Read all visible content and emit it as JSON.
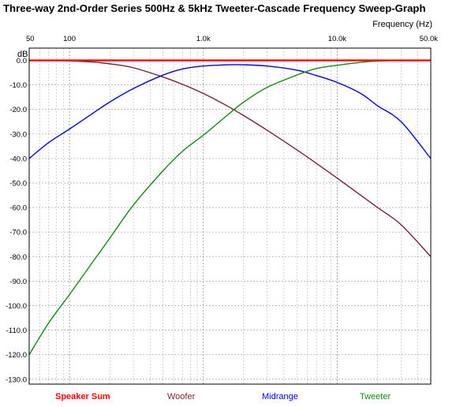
{
  "chart_data": {
    "type": "line",
    "title": "Three-way 2nd-Order Series 500Hz & 5kHz Tweeter-Cascade Frequency Sweep-Graph",
    "xlabel": "Frequency  (Hz)",
    "ylabel": "dB",
    "x_scale": "log",
    "xlim": [
      50,
      50000
    ],
    "ylim": [
      -132,
      5
    ],
    "x_ticks": [
      {
        "value": 50,
        "label": "50"
      },
      {
        "value": 100,
        "label": "100"
      },
      {
        "value": 1000,
        "label": "1.0k"
      },
      {
        "value": 10000,
        "label": "10.0k"
      },
      {
        "value": 50000,
        "label": "50.0k"
      }
    ],
    "y_ticks": [
      0,
      -10,
      -20,
      -30,
      -40,
      -50,
      -60,
      -70,
      -80,
      -90,
      -100,
      -110,
      -120,
      -130
    ],
    "y_tick_labels": [
      "0.0",
      "-10.0",
      "-20.0",
      "-30.0",
      "-40.0",
      "-50.0",
      "-60.0",
      "-70.0",
      "-80.0",
      "-90.0",
      "-100.0",
      "-110.0",
      "-120.0",
      "-130.0"
    ],
    "grid": true,
    "legend_position": "bottom",
    "x": [
      50,
      70,
      100,
      150,
      200,
      300,
      500,
      700,
      1000,
      1500,
      2000,
      3000,
      5000,
      7000,
      10000,
      15000,
      20000,
      30000,
      50000
    ],
    "series": [
      {
        "name": "Speaker Sum",
        "color": "#ff0000",
        "values": [
          0,
          0,
          0,
          0,
          0,
          0,
          0,
          0,
          0,
          0,
          0,
          0,
          0,
          0,
          0,
          0,
          0,
          0,
          0
        ]
      },
      {
        "name": "Woofer",
        "color": "#7a1f2e",
        "values": [
          0,
          0,
          -0.2,
          -0.7,
          -1.4,
          -3.0,
          -6.8,
          -9.8,
          -13.5,
          -18.5,
          -22.5,
          -28.5,
          -36.5,
          -42.0,
          -48.0,
          -55.0,
          -60.0,
          -67.0,
          -80.0
        ]
      },
      {
        "name": "Midrange",
        "color": "#0000ee",
        "values": [
          -40.0,
          -33.5,
          -28.0,
          -21.5,
          -17.0,
          -11.5,
          -6.0,
          -3.5,
          -2.3,
          -1.8,
          -1.8,
          -2.3,
          -4.0,
          -6.2,
          -9.0,
          -13.5,
          -18.5,
          -25.0,
          -40.0
        ]
      },
      {
        "name": "Tweeter",
        "color": "#118a11",
        "values": [
          -120.0,
          -107.0,
          -95.5,
          -82.0,
          -72.5,
          -59.0,
          -45.0,
          -37.0,
          -30.5,
          -22.5,
          -17.0,
          -11.0,
          -6.0,
          -3.3,
          -2.0,
          -0.8,
          -0.3,
          0,
          0
        ]
      }
    ]
  }
}
